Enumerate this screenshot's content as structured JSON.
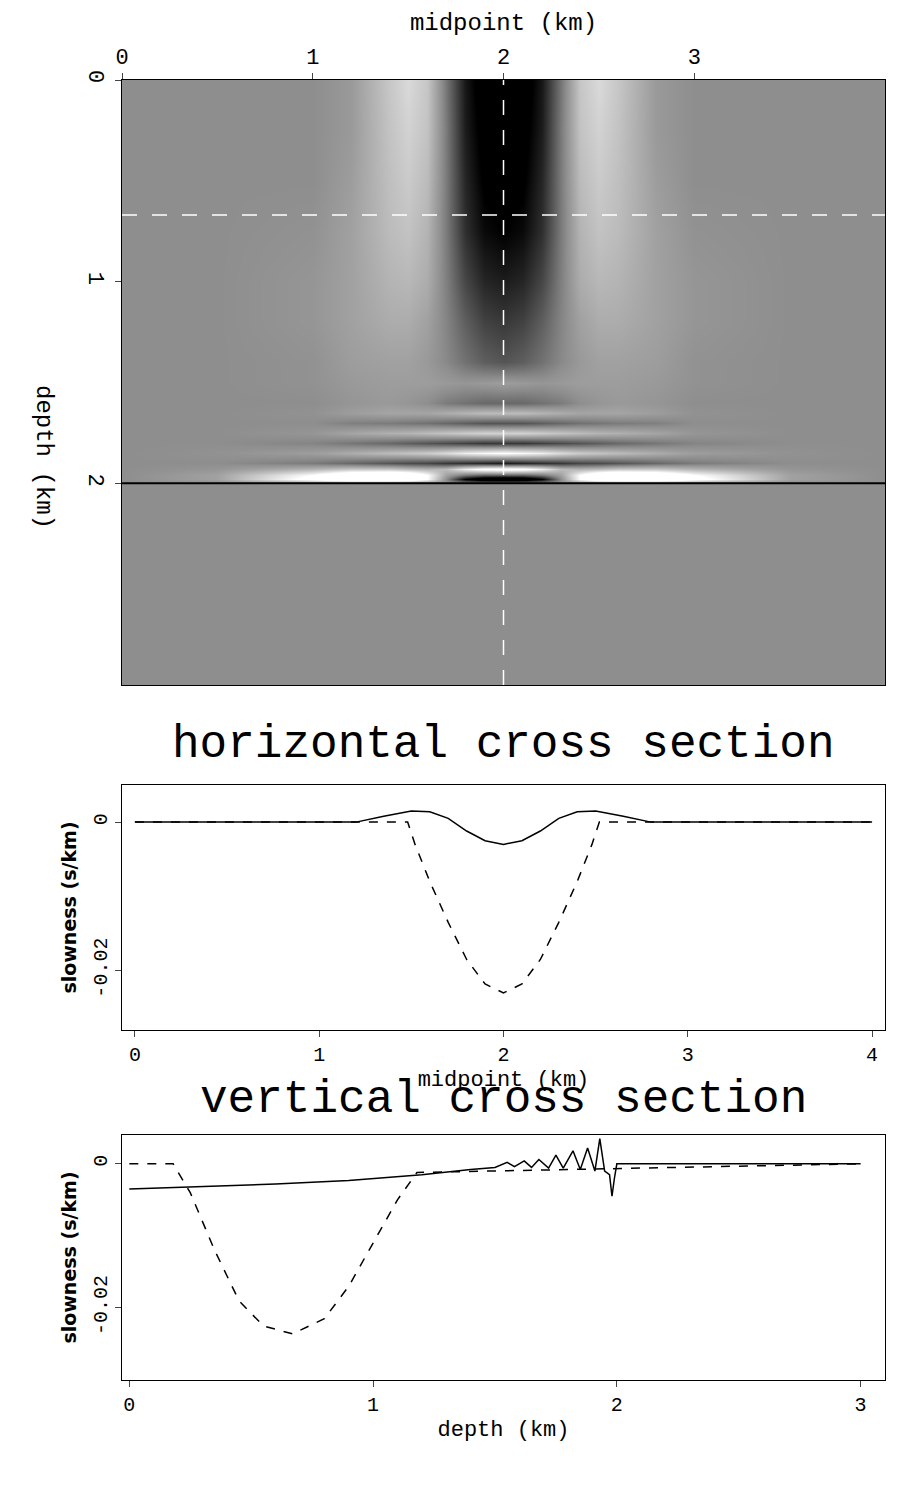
{
  "chart_data": [
    {
      "type": "heatmap",
      "xlabel": "midpoint (km)",
      "ylabel": "depth (km)",
      "xlim": [
        0,
        4
      ],
      "xticks": [
        0,
        1,
        2,
        3
      ],
      "ylim": [
        3,
        0
      ],
      "yticks": [
        0,
        1,
        2
      ],
      "zlim": [
        -0.003,
        0.003
      ],
      "cross_section_midpoint": 2,
      "cross_section_depth": 0.67,
      "horizontal_line_depth": 2,
      "x": [
        0,
        0.5,
        1.0,
        1.2,
        1.4,
        1.5,
        1.6,
        1.7,
        1.8,
        1.9,
        2.0,
        2.1,
        2.2,
        2.3,
        2.4,
        2.5,
        2.6,
        2.8,
        3.0,
        3.5,
        4.0
      ],
      "y": [
        0,
        0.25,
        0.5,
        0.75,
        1.0,
        1.2,
        1.4,
        1.5,
        1.6,
        1.65,
        1.7,
        1.75,
        1.8,
        1.85,
        1.9,
        1.93,
        1.96,
        1.98,
        2.0,
        2.05,
        3.0
      ],
      "z": [
        [
          0,
          0,
          0,
          0.0003,
          0.0015,
          0.002,
          0.0015,
          -0.0005,
          -0.0025,
          -0.0035,
          -0.0035,
          -0.0035,
          -0.0025,
          -0.0005,
          0.0015,
          0.002,
          0.0015,
          0.0003,
          0,
          0,
          0
        ],
        [
          0,
          0,
          0,
          0.0003,
          0.0014,
          0.0018,
          0.0014,
          -0.0004,
          -0.0024,
          -0.0033,
          -0.0034,
          -0.0033,
          -0.0024,
          -0.0004,
          0.0014,
          0.0018,
          0.0014,
          0.0003,
          0,
          0,
          0
        ],
        [
          0,
          0,
          0,
          0.0004,
          0.0013,
          0.0016,
          0.0012,
          -0.0004,
          -0.0022,
          -0.0031,
          -0.0032,
          -0.0031,
          -0.0022,
          -0.0004,
          0.0012,
          0.0016,
          0.0013,
          0.0004,
          0,
          0,
          0
        ],
        [
          0,
          0,
          0.0001,
          0.0005,
          0.0012,
          0.0014,
          0.001,
          -0.0004,
          -0.002,
          -0.0028,
          -0.003,
          -0.0028,
          -0.002,
          -0.0004,
          0.001,
          0.0014,
          0.0012,
          0.0005,
          0.0001,
          0,
          0
        ],
        [
          0,
          0,
          0.0002,
          0.0005,
          0.001,
          0.0011,
          0.0008,
          -0.0003,
          -0.0015,
          -0.0022,
          -0.0024,
          -0.0022,
          -0.0015,
          -0.0003,
          0.0008,
          0.0011,
          0.001,
          0.0005,
          0.0002,
          0,
          0
        ],
        [
          0,
          0,
          0.0002,
          0.0005,
          0.0008,
          0.0008,
          0.0005,
          -0.0002,
          -0.001,
          -0.0016,
          -0.0018,
          -0.0016,
          -0.001,
          -0.0002,
          0.0005,
          0.0008,
          0.0008,
          0.0005,
          0.0002,
          0,
          0
        ],
        [
          0,
          0,
          0.0001,
          0.0004,
          0.0005,
          0.0005,
          0.0003,
          -0.0001,
          -0.0006,
          -0.001,
          -0.0012,
          -0.001,
          -0.0006,
          -0.0001,
          0.0003,
          0.0005,
          0.0005,
          0.0004,
          0.0001,
          0,
          0
        ],
        [
          0,
          0,
          0.0001,
          0.0003,
          0.0004,
          0.0004,
          0.0004,
          0.0003,
          0.0002,
          0.0003,
          0.0004,
          0.0003,
          0.0002,
          0.0003,
          0.0004,
          0.0004,
          0.0004,
          0.0003,
          0.0001,
          0,
          0
        ],
        [
          0,
          0,
          0,
          0.0002,
          0.0003,
          0.0002,
          0,
          -0.0004,
          -0.0006,
          -0.0008,
          -0.0008,
          -0.0008,
          -0.0006,
          -0.0004,
          0,
          0.0002,
          0.0003,
          0.0002,
          0,
          0,
          0
        ],
        [
          0,
          0,
          0.0001,
          0.0004,
          0.0006,
          0.0006,
          0.0006,
          0.0008,
          0.001,
          0.0012,
          0.0012,
          0.0012,
          0.001,
          0.0008,
          0.0006,
          0.0006,
          0.0006,
          0.0004,
          0.0001,
          0,
          0
        ],
        [
          0,
          0,
          0,
          -0.0003,
          -0.0004,
          -0.0005,
          -0.0006,
          -0.0008,
          -0.001,
          -0.0012,
          -0.0012,
          -0.0012,
          -0.001,
          -0.0008,
          -0.0006,
          -0.0005,
          -0.0004,
          -0.0003,
          0,
          0,
          0
        ],
        [
          0,
          0,
          0.0002,
          0.0006,
          0.0009,
          0.001,
          0.0012,
          0.0014,
          0.0016,
          0.0018,
          0.0018,
          0.0018,
          0.0016,
          0.0014,
          0.0012,
          0.001,
          0.0009,
          0.0006,
          0.0002,
          0,
          0
        ],
        [
          0,
          0,
          -0.0002,
          -0.0005,
          -0.0008,
          -0.001,
          -0.0012,
          -0.0014,
          -0.0016,
          -0.0018,
          -0.0018,
          -0.0018,
          -0.0016,
          -0.0014,
          -0.0012,
          -0.001,
          -0.0008,
          -0.0005,
          -0.0002,
          0,
          0
        ],
        [
          0,
          0.0001,
          0.0004,
          0.0008,
          0.0012,
          0.0014,
          0.0016,
          0.002,
          0.0025,
          0.0028,
          0.003,
          0.0028,
          0.0025,
          0.002,
          0.0016,
          0.0014,
          0.0012,
          0.0008,
          0.0004,
          0.0001,
          0
        ],
        [
          0,
          0,
          -0.0004,
          -0.0008,
          -0.0012,
          -0.0014,
          -0.0015,
          -0.0018,
          -0.002,
          -0.0022,
          -0.0024,
          -0.0022,
          -0.002,
          -0.0018,
          -0.0015,
          -0.0014,
          -0.0012,
          -0.0008,
          -0.0004,
          0,
          0
        ],
        [
          0,
          0.0002,
          0.001,
          0.0015,
          0.0015,
          0.0012,
          0.001,
          0.0012,
          0.0025,
          0.0033,
          0.0035,
          0.0033,
          0.0025,
          0.0012,
          0.001,
          0.0012,
          0.0015,
          0.0015,
          0.001,
          0.0002,
          0
        ],
        [
          0,
          0.0005,
          0.003,
          0.0045,
          0.005,
          0.0045,
          0.003,
          0.0005,
          -0.0005,
          -0.001,
          -0.001,
          -0.001,
          -0.0005,
          0.0005,
          0.003,
          0.0045,
          0.005,
          0.0045,
          0.003,
          0.0005,
          0
        ],
        [
          0,
          0.0005,
          0.0035,
          0.005,
          0.005,
          0.0045,
          0.003,
          0,
          -0.003,
          -0.0043,
          -0.0045,
          -0.0043,
          -0.003,
          0,
          0.003,
          0.0045,
          0.005,
          0.005,
          0.0035,
          0.0005,
          0
        ],
        [
          0,
          0,
          0,
          0,
          0,
          0,
          0,
          0,
          0,
          0,
          0,
          0,
          0,
          0,
          0,
          0,
          0,
          0,
          0,
          0,
          0
        ],
        [
          0,
          0,
          0,
          0,
          0,
          0,
          0,
          0,
          0,
          0,
          0,
          0,
          0,
          0,
          0,
          0,
          0,
          0,
          0,
          0,
          0
        ],
        [
          0,
          0,
          0,
          0,
          0,
          0,
          0,
          0,
          0,
          0,
          0,
          0,
          0,
          0,
          0,
          0,
          0,
          0,
          0,
          0,
          0
        ]
      ]
    },
    {
      "type": "line",
      "title": "horizontal cross section",
      "xlabel": "midpoint (km)",
      "ylabel": "slowness (s/km)",
      "xlim": [
        -0.07,
        4.07
      ],
      "xticks": [
        0,
        1,
        2,
        3,
        4
      ],
      "ylim": [
        -0.028,
        0.005
      ],
      "yticks": [
        -0.02,
        0
      ],
      "series": [
        {
          "color": "#000000",
          "line_style": "solid",
          "x": [
            0,
            1.2,
            1.35,
            1.5,
            1.6,
            1.7,
            1.8,
            1.9,
            2.0,
            2.1,
            2.2,
            2.3,
            2.4,
            2.5,
            2.65,
            2.8,
            4.0
          ],
          "values": [
            0,
            0,
            0.0008,
            0.0015,
            0.0014,
            0.0005,
            -0.0012,
            -0.0025,
            -0.003,
            -0.0025,
            -0.0012,
            0.0005,
            0.0014,
            0.0015,
            0.0008,
            0,
            0
          ]
        },
        {
          "color": "#000000",
          "line_style": "dashed",
          "x": [
            0,
            1.48,
            1.52,
            1.6,
            1.7,
            1.8,
            1.9,
            2.0,
            2.1,
            2.2,
            2.3,
            2.4,
            2.48,
            2.52,
            4.0
          ],
          "values": [
            0,
            0,
            -0.003,
            -0.008,
            -0.0135,
            -0.0185,
            -0.0218,
            -0.023,
            -0.0218,
            -0.0185,
            -0.0135,
            -0.008,
            -0.003,
            0,
            0
          ]
        }
      ]
    },
    {
      "type": "line",
      "title": "vertical cross section",
      "xlabel": "depth (km)",
      "ylabel": "slowness (s/km)",
      "xlim": [
        -0.03,
        3.1
      ],
      "xticks": [
        0,
        1,
        2,
        3
      ],
      "ylim": [
        -0.03,
        0.004
      ],
      "yticks": [
        -0.02,
        0
      ],
      "series": [
        {
          "color": "#000000",
          "line_style": "solid",
          "x": [
            0,
            0.3,
            0.6,
            0.9,
            1.2,
            1.4,
            1.5,
            1.55,
            1.58,
            1.62,
            1.65,
            1.68,
            1.72,
            1.75,
            1.78,
            1.82,
            1.85,
            1.88,
            1.91,
            1.93,
            1.95,
            1.97,
            1.98,
            1.99,
            2.0,
            3.0
          ],
          "values": [
            -0.0035,
            -0.0032,
            -0.0028,
            -0.0023,
            -0.0015,
            -0.0008,
            -0.0005,
            0.0002,
            -0.0004,
            0.0004,
            -0.0005,
            0.0006,
            -0.0006,
            0.0012,
            -0.0006,
            0.0018,
            -0.0008,
            0.0022,
            -0.001,
            0.0035,
            -0.001,
            -0.0015,
            -0.0045,
            -0.002,
            0,
            0
          ]
        },
        {
          "color": "#000000",
          "line_style": "dashed",
          "x": [
            0,
            0.18,
            0.25,
            0.35,
            0.45,
            0.55,
            0.67,
            0.8,
            0.9,
            1.0,
            1.1,
            1.18,
            3.0
          ],
          "values": [
            0,
            0,
            -0.004,
            -0.012,
            -0.019,
            -0.0225,
            -0.0236,
            -0.0215,
            -0.017,
            -0.011,
            -0.005,
            -0.0012,
            0
          ]
        }
      ]
    }
  ]
}
